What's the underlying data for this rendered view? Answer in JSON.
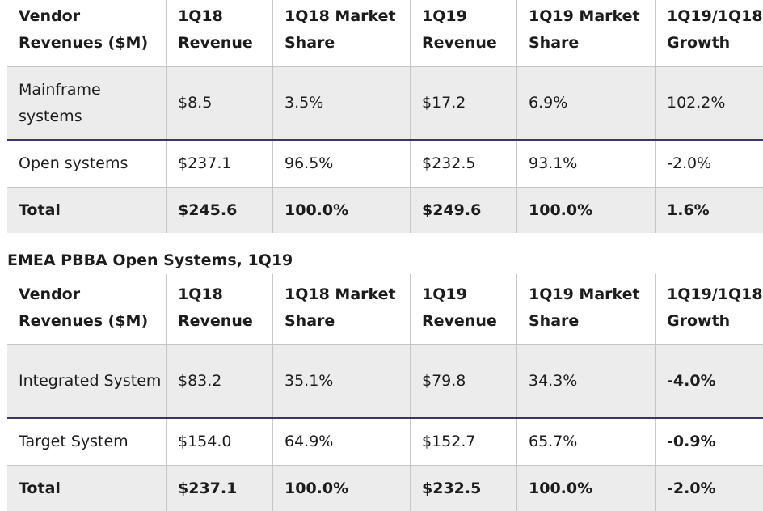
{
  "table1": {
    "headers": [
      "Vendor Revenues ($M)",
      "1Q18 Revenue",
      "1Q18 Market Share",
      "1Q19 Revenue",
      "1Q19 Market Share",
      "1Q19/1Q18 Growth"
    ],
    "rows": [
      [
        "Mainframe systems",
        "$8.5",
        "3.5%",
        "$17.2",
        "6.9%",
        "102.2%"
      ],
      [
        "Open systems",
        "$237.1",
        "96.5%",
        "$232.5",
        "93.1%",
        "-2.0%"
      ],
      [
        "Total",
        "$245.6",
        "100.0%",
        "$249.6",
        "100.0%",
        "1.6%"
      ]
    ]
  },
  "table2_title": "EMEA PBBA Open Systems, 1Q19",
  "table2": {
    "headers": [
      "Vendor Revenues ($M)",
      "1Q18 Revenue",
      "1Q18 Market Share",
      "1Q19 Revenue",
      "1Q19 Market Share",
      "1Q19/1Q18 Growth"
    ],
    "rows": [
      [
        "Integrated System",
        "$83.2",
        "35.1%",
        "$79.8",
        "34.3%",
        "-4.0%"
      ],
      [
        "Target System",
        "$154.0",
        "64.9%",
        "$152.7",
        "65.7%",
        "-0.9%"
      ],
      [
        "Total",
        "$237.1",
        "100.0%",
        "$232.5",
        "100.0%",
        "-2.0%"
      ]
    ]
  }
}
